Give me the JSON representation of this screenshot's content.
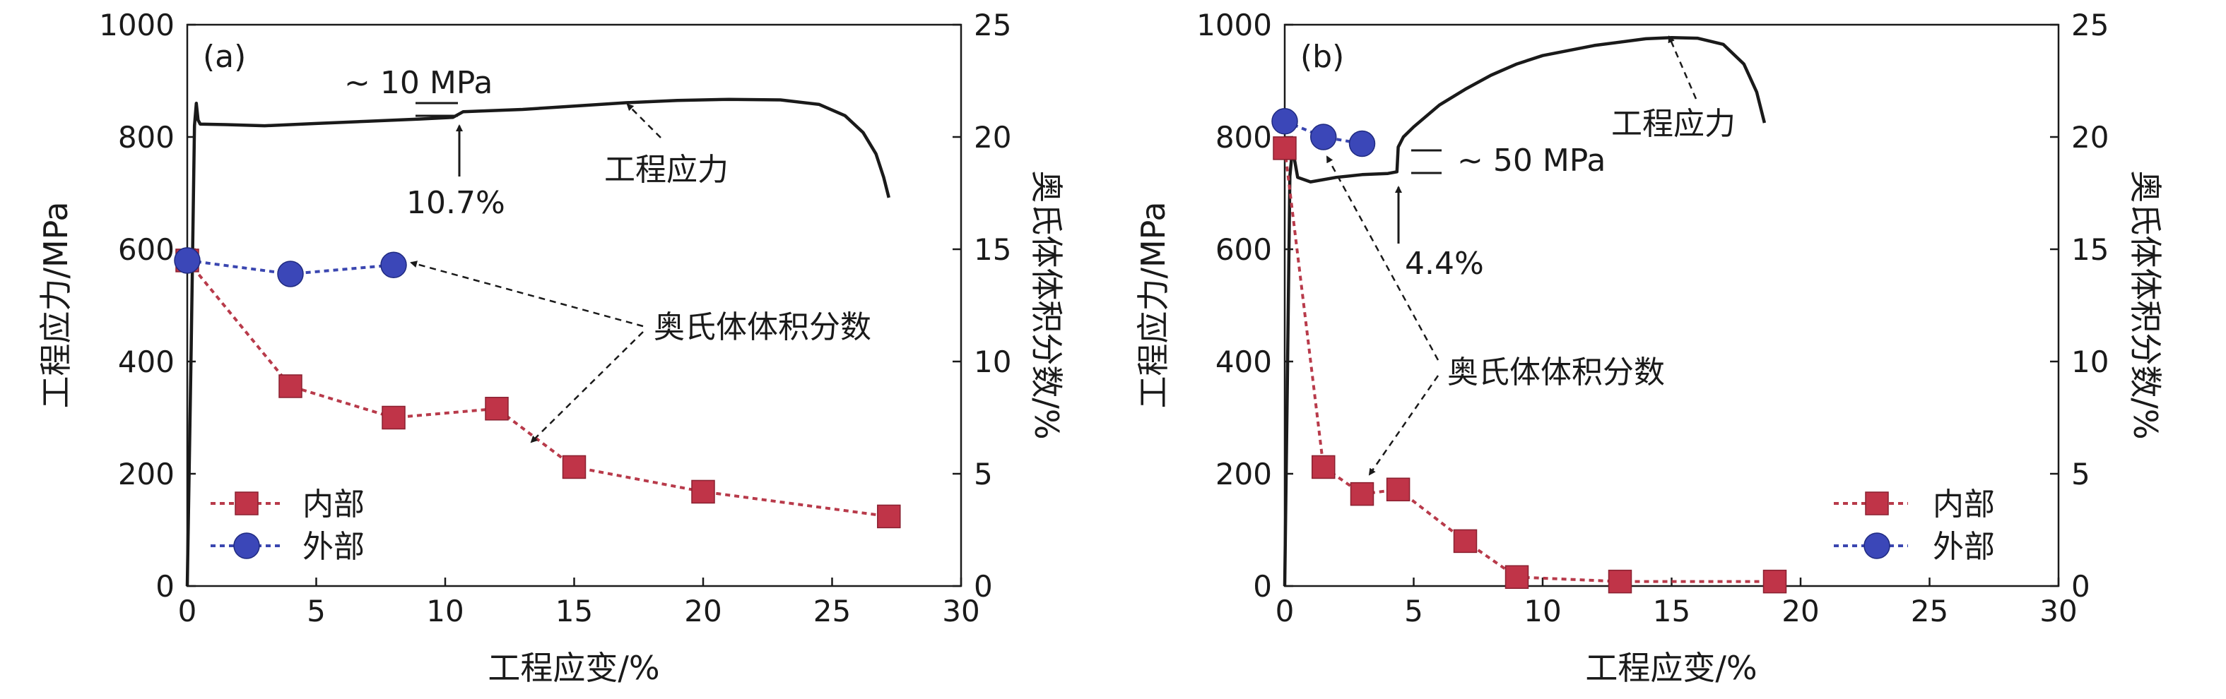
{
  "chart_data": [
    {
      "type": "line",
      "panel_label": "(a)",
      "xlabel": "工程应变/%",
      "ylabel": "工程应力/MPa",
      "y2label": "奥氏体体积分数/%",
      "xlim": [
        0,
        30
      ],
      "ylim": [
        0,
        1000
      ],
      "y2lim": [
        0,
        25
      ],
      "xticks": [
        "0",
        "5",
        "10",
        "15",
        "20",
        "25",
        "30"
      ],
      "yticks": [
        "0",
        "200",
        "400",
        "600",
        "800",
        "1000"
      ],
      "y2ticks": [
        "0",
        "5",
        "10",
        "15",
        "20",
        "25"
      ],
      "grid": false,
      "legend_position": "bottom-left",
      "stress_curve": {
        "name": "工程应力",
        "color": "#1a1a1a",
        "x": [
          0,
          0.15,
          0.28,
          0.35,
          0.42,
          0.5,
          1.5,
          3,
          5,
          7,
          9,
          10.3,
          10.7,
          11.3,
          13,
          15,
          17,
          19,
          21,
          23,
          24.5,
          25.5,
          26.2,
          26.7,
          27.0,
          27.2
        ],
        "y": [
          0,
          420,
          820,
          860,
          830,
          823,
          822,
          820,
          824,
          828,
          832,
          835,
          845,
          846,
          849,
          855,
          861,
          865,
          867,
          866,
          858,
          838,
          808,
          770,
          728,
          692
        ]
      },
      "series": [
        {
          "name": "内部",
          "color": "#b83a4a",
          "marker": "square",
          "x": [
            0,
            4,
            8,
            12,
            15,
            20,
            27.2
          ],
          "values": [
            14.5,
            8.9,
            7.5,
            7.9,
            5.3,
            4.2,
            3.1
          ]
        },
        {
          "name": "外部",
          "color": "#3a46b0",
          "marker": "circle",
          "x": [
            0,
            4,
            8
          ],
          "values": [
            14.5,
            13.9,
            14.3
          ]
        }
      ],
      "annotations": {
        "delta": "~ 10 MPa",
        "strain_mark": "10.7%",
        "curve_name": "工程应力",
        "vf_name": "奥氏体体积分数"
      }
    },
    {
      "type": "line",
      "panel_label": "(b)",
      "xlabel": "工程应变/%",
      "ylabel": "工程应力/MPa",
      "y2label": "奥氏体体积分数/%",
      "xlim": [
        0,
        30
      ],
      "ylim": [
        0,
        1000
      ],
      "y2lim": [
        0,
        25
      ],
      "xticks": [
        "0",
        "5",
        "10",
        "15",
        "20",
        "25",
        "30"
      ],
      "yticks": [
        "0",
        "200",
        "400",
        "600",
        "800",
        "1000"
      ],
      "y2ticks": [
        "0",
        "5",
        "10",
        "15",
        "20",
        "25"
      ],
      "grid": false,
      "legend_position": "bottom-right",
      "stress_curve": {
        "name": "工程应力",
        "color": "#1a1a1a",
        "x": [
          0,
          0.1,
          0.2,
          0.3,
          0.5,
          1,
          2,
          3,
          4,
          4.35,
          4.4,
          4.6,
          5,
          6,
          7,
          8,
          9,
          10,
          12,
          14,
          15,
          16,
          17,
          17.8,
          18.3,
          18.6
        ],
        "y": [
          0,
          360,
          730,
          780,
          728,
          720,
          728,
          733,
          735,
          738,
          782,
          800,
          818,
          857,
          885,
          910,
          930,
          945,
          963,
          975,
          977,
          976,
          965,
          930,
          880,
          825
        ]
      },
      "series": [
        {
          "name": "内部",
          "color": "#b83a4a",
          "marker": "square",
          "x": [
            0,
            1.5,
            3,
            4.4,
            7,
            9,
            13,
            19
          ],
          "values": [
            19.5,
            5.3,
            4.1,
            4.3,
            2.0,
            0.4,
            0.2,
            0.2
          ]
        },
        {
          "name": "外部",
          "color": "#3a46b0",
          "marker": "circle",
          "x": [
            0,
            1.5,
            3
          ],
          "values": [
            20.7,
            20.0,
            19.7
          ]
        }
      ],
      "annotations": {
        "delta": "~ 50 MPa",
        "strain_mark": "4.4%",
        "curve_name": "工程应力",
        "vf_name": "奥氏体体积分数"
      }
    }
  ]
}
